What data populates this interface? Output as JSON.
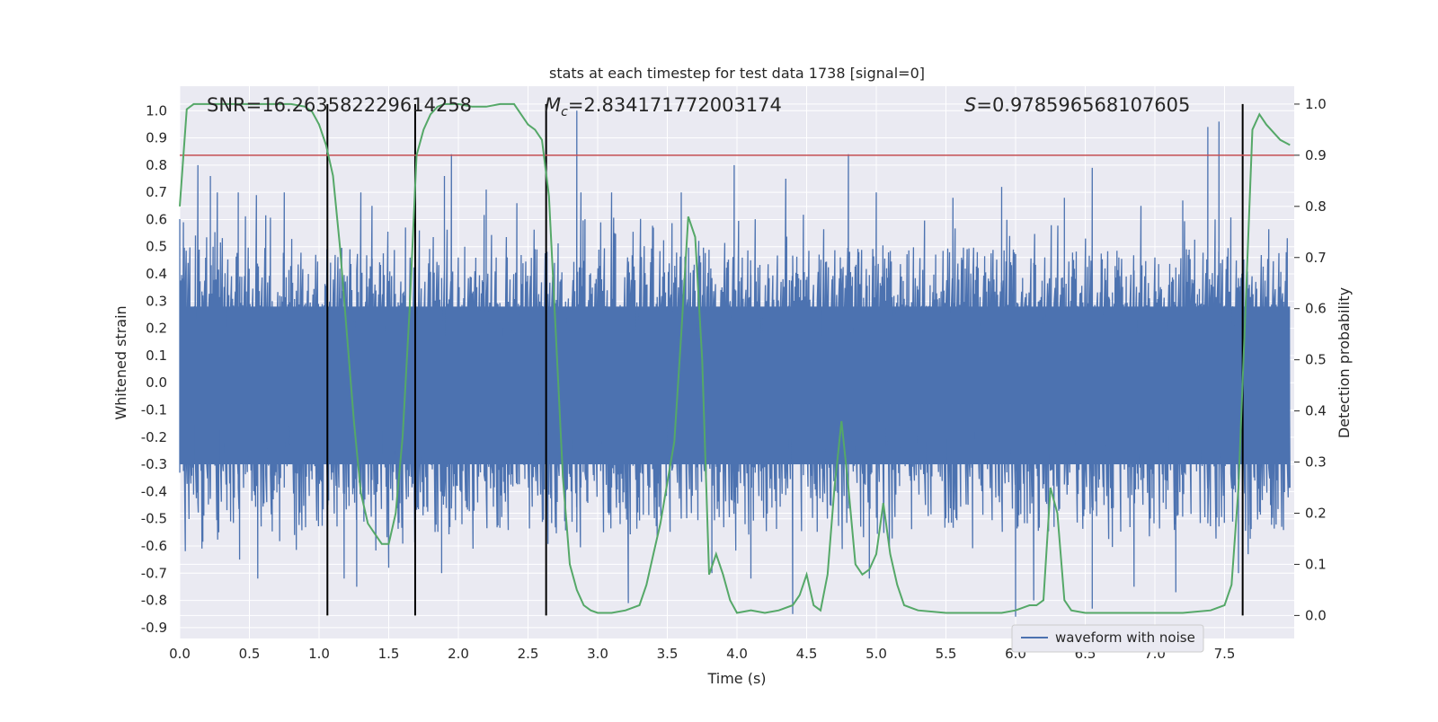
{
  "chart_data": {
    "type": "line",
    "title": "stats at each timestep for test data 1738 [signal=0]",
    "xlabel": "Time (s)",
    "ylabel_left": "Whitened strain",
    "ylabel_right": "Detection probability",
    "xlim": [
      0,
      8.0
    ],
    "ylim_left": [
      -0.94,
      1.09
    ],
    "ylim_right": [
      -0.045,
      1.035
    ],
    "x_ticks": [
      "0.0",
      "0.5",
      "1.0",
      "1.5",
      "2.0",
      "2.5",
      "3.0",
      "3.5",
      "4.0",
      "4.5",
      "5.0",
      "5.5",
      "6.0",
      "6.5",
      "7.0",
      "7.5"
    ],
    "x_tick_values": [
      0,
      0.5,
      1.0,
      1.5,
      2.0,
      2.5,
      3.0,
      3.5,
      4.0,
      4.5,
      5.0,
      5.5,
      6.0,
      6.5,
      7.0,
      7.5
    ],
    "y_left_ticks": [
      "1.0",
      "0.9",
      "0.8",
      "0.7",
      "0.6",
      "0.5",
      "0.4",
      "0.3",
      "0.2",
      "0.1",
      "0.0",
      "-0.1",
      "-0.2",
      "-0.3",
      "-0.4",
      "-0.5",
      "-0.6",
      "-0.7",
      "-0.8",
      "-0.9"
    ],
    "y_left_tick_values": [
      1.0,
      0.9,
      0.8,
      0.7,
      0.6,
      0.5,
      0.4,
      0.3,
      0.2,
      0.1,
      0.0,
      -0.1,
      -0.2,
      -0.3,
      -0.4,
      -0.5,
      -0.6,
      -0.7,
      -0.8,
      -0.9
    ],
    "y_right_ticks": [
      "1.0",
      "0.9",
      "0.8",
      "0.7",
      "0.6",
      "0.5",
      "0.4",
      "0.3",
      "0.2",
      "0.1",
      "0.0"
    ],
    "y_right_tick_values": [
      1.0,
      0.9,
      0.8,
      0.7,
      0.6,
      0.5,
      0.4,
      0.3,
      0.2,
      0.1,
      0.0
    ],
    "grid": true,
    "stats": {
      "snr": "SNR=16.263582229614258",
      "mc_symbol": "M",
      "mc_sub": "c",
      "mc_value": "=2.834171772003174",
      "s_symbol": "S",
      "s_value": "=0.978596568107605"
    },
    "legend": {
      "entry": "waveform with noise",
      "placement": "lower-right"
    },
    "threshold_probability": 0.9,
    "vertical_lines_x": [
      1.06,
      1.69,
      2.63,
      7.63
    ],
    "waveform": {
      "name": "waveform with noise",
      "color": "#4c72b0",
      "core_band": [
        -0.3,
        0.28
      ],
      "spikes_up": [
        [
          0.13,
          0.8
        ],
        [
          0.22,
          0.76
        ],
        [
          0.27,
          0.7
        ],
        [
          0.42,
          0.7
        ],
        [
          0.55,
          0.69
        ],
        [
          0.75,
          0.7
        ],
        [
          1.3,
          0.7
        ],
        [
          1.38,
          0.65
        ],
        [
          1.72,
          0.56
        ],
        [
          1.9,
          0.76
        ],
        [
          1.95,
          0.84
        ],
        [
          2.2,
          0.71
        ],
        [
          2.42,
          0.66
        ],
        [
          2.85,
          1.0
        ],
        [
          2.88,
          0.7
        ],
        [
          3.1,
          0.7
        ],
        [
          3.4,
          0.57
        ],
        [
          3.6,
          0.7
        ],
        [
          3.98,
          0.8
        ],
        [
          4.35,
          0.75
        ],
        [
          4.8,
          0.84
        ],
        [
          5.0,
          0.7
        ],
        [
          5.55,
          0.68
        ],
        [
          5.9,
          0.72
        ],
        [
          6.35,
          0.68
        ],
        [
          6.55,
          0.79
        ],
        [
          6.9,
          0.65
        ],
        [
          7.2,
          0.67
        ],
        [
          7.38,
          0.94
        ],
        [
          7.46,
          0.96
        ]
      ],
      "spikes_down": [
        [
          0.28,
          -0.55
        ],
        [
          0.43,
          -0.65
        ],
        [
          0.56,
          -0.72
        ],
        [
          1.18,
          -0.72
        ],
        [
          1.27,
          -0.75
        ],
        [
          1.5,
          -0.68
        ],
        [
          1.88,
          -0.7
        ],
        [
          3.22,
          -0.81
        ],
        [
          3.82,
          -0.7
        ],
        [
          4.1,
          -0.72
        ],
        [
          4.4,
          -0.85
        ],
        [
          4.95,
          -0.72
        ],
        [
          6.0,
          -0.86
        ],
        [
          6.13,
          -0.8
        ],
        [
          6.55,
          -0.83
        ],
        [
          6.85,
          -0.75
        ],
        [
          7.15,
          -0.77
        ],
        [
          7.6,
          -0.7
        ],
        [
          7.67,
          -0.63
        ]
      ]
    },
    "probability": {
      "color": "#55a868",
      "x": [
        0.0,
        0.05,
        0.1,
        0.2,
        0.4,
        0.6,
        0.8,
        0.9,
        0.95,
        1.0,
        1.05,
        1.1,
        1.15,
        1.2,
        1.25,
        1.3,
        1.35,
        1.4,
        1.45,
        1.5,
        1.55,
        1.6,
        1.65,
        1.7,
        1.75,
        1.8,
        1.85,
        1.9,
        2.0,
        2.1,
        2.2,
        2.3,
        2.4,
        2.5,
        2.55,
        2.6,
        2.65,
        2.7,
        2.75,
        2.8,
        2.85,
        2.9,
        2.95,
        3.0,
        3.1,
        3.2,
        3.3,
        3.35,
        3.4,
        3.45,
        3.5,
        3.55,
        3.6,
        3.65,
        3.7,
        3.75,
        3.8,
        3.85,
        3.9,
        3.95,
        4.0,
        4.1,
        4.2,
        4.3,
        4.4,
        4.45,
        4.5,
        4.55,
        4.6,
        4.65,
        4.7,
        4.75,
        4.8,
        4.85,
        4.9,
        4.95,
        5.0,
        5.05,
        5.1,
        5.15,
        5.2,
        5.3,
        5.5,
        5.9,
        6.0,
        6.1,
        6.15,
        6.2,
        6.25,
        6.3,
        6.35,
        6.4,
        6.5,
        6.8,
        7.0,
        7.2,
        7.4,
        7.5,
        7.55,
        7.6,
        7.65,
        7.7,
        7.75,
        7.8,
        7.9,
        7.97
      ],
      "y": [
        0.8,
        0.99,
        1.0,
        1.0,
        1.0,
        1.0,
        1.0,
        0.995,
        0.985,
        0.96,
        0.92,
        0.86,
        0.72,
        0.55,
        0.38,
        0.24,
        0.18,
        0.16,
        0.14,
        0.14,
        0.2,
        0.35,
        0.6,
        0.9,
        0.95,
        0.98,
        0.995,
        1.0,
        1.0,
        0.995,
        0.995,
        1.0,
        1.0,
        0.96,
        0.95,
        0.93,
        0.82,
        0.55,
        0.27,
        0.1,
        0.05,
        0.02,
        0.01,
        0.005,
        0.005,
        0.01,
        0.02,
        0.06,
        0.12,
        0.18,
        0.26,
        0.34,
        0.55,
        0.78,
        0.74,
        0.5,
        0.08,
        0.12,
        0.08,
        0.03,
        0.005,
        0.01,
        0.005,
        0.01,
        0.02,
        0.04,
        0.08,
        0.02,
        0.01,
        0.08,
        0.25,
        0.38,
        0.25,
        0.1,
        0.08,
        0.09,
        0.12,
        0.22,
        0.12,
        0.06,
        0.02,
        0.01,
        0.005,
        0.005,
        0.01,
        0.02,
        0.02,
        0.03,
        0.25,
        0.2,
        0.03,
        0.01,
        0.005,
        0.005,
        0.005,
        0.005,
        0.01,
        0.02,
        0.06,
        0.25,
        0.6,
        0.95,
        0.98,
        0.96,
        0.93,
        0.92
      ]
    }
  }
}
